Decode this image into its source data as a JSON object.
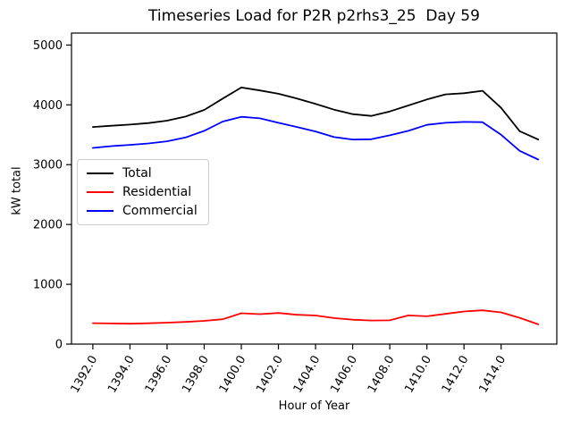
{
  "figure": {
    "title": "Timeseries Load for P2R p2rhs3_25  Day 59",
    "xlabel": "Hour of Year",
    "ylabel": "kW total"
  },
  "legend": {
    "items": [
      {
        "label": "Total",
        "color": "#000000"
      },
      {
        "label": "Residential",
        "color": "#ff0000"
      },
      {
        "label": "Commercial",
        "color": "#0000ff"
      }
    ]
  },
  "chart_data": {
    "type": "line",
    "title": "Timeseries Load for P2R p2rhs3_25  Day 59",
    "xlabel": "Hour of Year",
    "ylabel": "kW total",
    "grid": false,
    "legend_position": "center-left",
    "xlim": [
      1390.85,
      1417.0
    ],
    "ylim": [
      0,
      5200
    ],
    "xtick_values": [
      1392,
      1394,
      1396,
      1398,
      1400,
      1402,
      1404,
      1406,
      1408,
      1410,
      1412,
      1414
    ],
    "xtick_labels": [
      "1392.0",
      "1394.0",
      "1396.0",
      "1398.0",
      "1400.0",
      "1402.0",
      "1404.0",
      "1406.0",
      "1408.0",
      "1410.0",
      "1412.0",
      "1414.0"
    ],
    "ytick_values": [
      0,
      1000,
      2000,
      3000,
      4000,
      5000
    ],
    "ytick_labels": [
      "0",
      "1000",
      "2000",
      "3000",
      "4000",
      "5000"
    ],
    "x": [
      1392,
      1393,
      1394,
      1395,
      1396,
      1397,
      1398,
      1399,
      1400,
      1401,
      1402,
      1403,
      1404,
      1405,
      1406,
      1407,
      1408,
      1409,
      1410,
      1411,
      1412,
      1413,
      1414,
      1415,
      1416
    ],
    "series": [
      {
        "name": "Total",
        "color": "#000000",
        "values": [
          3630,
          3650,
          3670,
          3695,
          3735,
          3805,
          3915,
          4105,
          4290,
          4240,
          4185,
          4105,
          4015,
          3920,
          3845,
          3815,
          3890,
          3990,
          4090,
          4175,
          4195,
          4235,
          3950,
          3560,
          3420
        ]
      },
      {
        "name": "Residential",
        "color": "#ff0000",
        "values": [
          350,
          345,
          340,
          348,
          358,
          370,
          388,
          415,
          515,
          500,
          520,
          490,
          478,
          435,
          408,
          395,
          398,
          480,
          465,
          505,
          545,
          565,
          530,
          440,
          330
        ]
      },
      {
        "name": "Commercial",
        "color": "#0000ff",
        "values": [
          3280,
          3310,
          3330,
          3355,
          3390,
          3455,
          3565,
          3720,
          3800,
          3775,
          3700,
          3630,
          3555,
          3460,
          3420,
          3425,
          3490,
          3565,
          3665,
          3700,
          3715,
          3710,
          3500,
          3230,
          3085
        ]
      }
    ]
  }
}
